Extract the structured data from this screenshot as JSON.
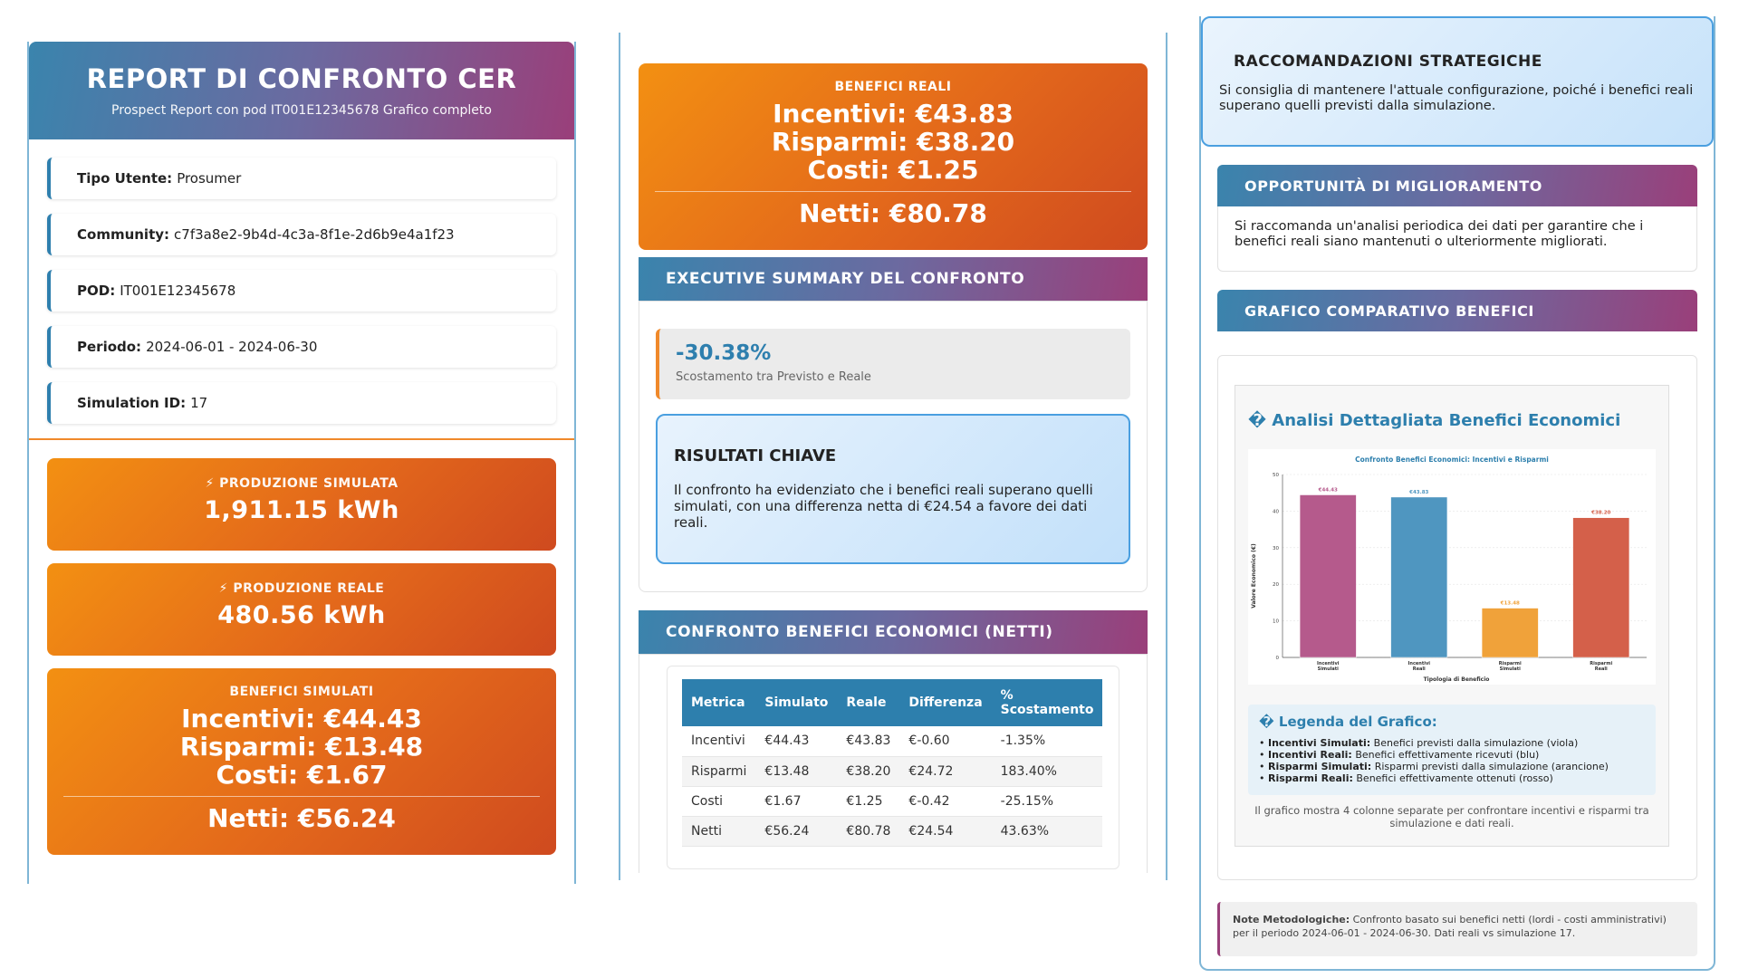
{
  "report": {
    "title": "REPORT DI CONFRONTO CER",
    "subtitle": "Prospect Report con pod IT001E12345678 Grafico completo"
  },
  "info": [
    {
      "label": "Tipo Utente:",
      "value": "Prosumer"
    },
    {
      "label": "Community:",
      "value": "c7f3a8e2-9b4d-4c3a-8f1e-2d6b9e4a1f23"
    },
    {
      "label": "POD:",
      "value": "IT001E12345678"
    },
    {
      "label": "Periodo:",
      "value": "2024-06-01 - 2024-06-30"
    },
    {
      "label": "Simulation ID:",
      "value": "17"
    }
  ],
  "produzione_simulata": {
    "label": "⚡ PRODUZIONE SIMULATA",
    "value": "1,911.15 kWh"
  },
  "produzione_reale": {
    "label": "⚡ PRODUZIONE REALE",
    "value": "480.56 kWh"
  },
  "benefici_simulati": {
    "label": "BENEFICI SIMULATI",
    "incentivi": "Incentivi: €44.43",
    "risparmi": "Risparmi: €13.48",
    "costi": "Costi: €1.67",
    "netti": "Netti: €56.24"
  },
  "benefici_reali": {
    "label": "BENEFICI REALI",
    "incentivi": "Incentivi: €43.83",
    "risparmi": "Risparmi: €38.20",
    "costi": "Costi: €1.25",
    "netti": "Netti: €80.78"
  },
  "executive": {
    "title": "EXECUTIVE SUMMARY DEL CONFRONTO",
    "deviation": "-30.38%",
    "deviation_label": "Scostamento tra Previsto e Reale",
    "key_title": "RISULTATI CHIAVE",
    "key_text": "Il confronto ha evidenziato che i benefici reali superano quelli simulati, con una differenza netta di €24.54 a favore dei dati reali."
  },
  "confronto": {
    "title": "CONFRONTO BENEFICI ECONOMICI (NETTI)",
    "headers": [
      "Metrica",
      "Simulato",
      "Reale",
      "Differenza",
      "% Scostamento"
    ],
    "rows": [
      [
        "Incentivi",
        "€44.43",
        "€43.83",
        "€-0.60",
        "-1.35%"
      ],
      [
        "Risparmi",
        "€13.48",
        "€38.20",
        "€24.72",
        "183.40%"
      ],
      [
        "Costi",
        "€1.67",
        "€1.25",
        "€-0.42",
        "-25.15%"
      ],
      [
        "Netti",
        "€56.24",
        "€80.78",
        "€24.54",
        "43.63%"
      ]
    ]
  },
  "raccomandazioni": {
    "title": "RACCOMANDAZIONI STRATEGICHE",
    "text": "Si consiglia di mantenere l'attuale configurazione, poiché i benefici reali superano quelli previsti dalla simulazione."
  },
  "opportunita": {
    "title": "OPPORTUNITÀ DI MIGLIORAMENTO",
    "text": "Si raccomanda un'analisi periodica dei dati per garantire che i benefici reali siano mantenuti o ulteriormente migliorati."
  },
  "grafico": {
    "title": "GRAFICO COMPARATIVO BENEFICI",
    "analysis_title": "� Analisi Dettagliata Benefici Economici",
    "legend_title": "� Legenda del Grafico:",
    "legend": [
      {
        "label": "Incentivi Simulati:",
        "text": "Benefici previsti dalla simulazione (viola)"
      },
      {
        "label": "Incentivi Reali:",
        "text": "Benefici effettivamente ricevuti (blu)"
      },
      {
        "label": "Risparmi Simulati:",
        "text": "Risparmi previsti dalla simulazione (arancione)"
      },
      {
        "label": "Risparmi Reali:",
        "text": "Benefici effettivamente ottenuti (rosso)"
      }
    ],
    "note": "Il grafico mostra 4 colonne separate per confrontare incentivi e risparmi tra simulazione e dati reali."
  },
  "note_metodologiche": {
    "label": "Note Metodologiche:",
    "text": "Confronto basato sui benefici netti (lordi - costi amministrativi) per il periodo 2024-06-01 - 2024-06-30. Dati reali vs simulazione 17."
  },
  "chart_data": {
    "type": "bar",
    "title": "Confronto Benefici Economici: Incentivi e Risparmi",
    "xlabel": "Tipologia di Beneficio",
    "ylabel": "Valore Economico (€)",
    "categories": [
      "Incentivi Simulati",
      "Incentivi Reali",
      "Risparmi Simulati",
      "Risparmi Reali"
    ],
    "values": [
      44.43,
      43.83,
      13.48,
      38.2
    ],
    "data_labels": [
      "€44.43",
      "€43.83",
      "€13.48",
      "€38.20"
    ],
    "colors": [
      "#b55a8c",
      "#4f96c0",
      "#f0a23a",
      "#d4604a"
    ],
    "yticks": [
      0,
      10,
      20,
      30,
      40,
      50
    ],
    "ylim": [
      0,
      50
    ]
  }
}
